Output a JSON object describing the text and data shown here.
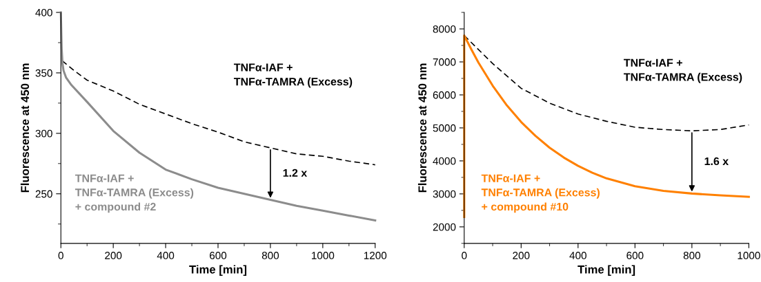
{
  "chart_data": [
    {
      "type": "line",
      "xlabel": "Time [min]",
      "ylabel": "Fluorescence at 450 nm",
      "xlim": [
        0,
        1200
      ],
      "xticks": [
        0,
        200,
        400,
        600,
        800,
        1000,
        1200
      ],
      "ylim": [
        209,
        400
      ],
      "yticks": [
        250,
        300,
        350,
        400
      ],
      "grid": false,
      "legend": false,
      "series": [
        {
          "name": "TNFα-IAF +\nTNFα-TAMRA (Excess)",
          "color": "#000000",
          "line_style": "dashed",
          "x": [
            5,
            50,
            100,
            200,
            300,
            400,
            500,
            600,
            700,
            800,
            900,
            1000,
            1100,
            1200
          ],
          "values": [
            360,
            352,
            344,
            335,
            324,
            316,
            308,
            301,
            293,
            288,
            283,
            281,
            277,
            274
          ]
        },
        {
          "name": "TNFα-IAF +\nTNFα-TAMRA (Excess)\n+ compound #2",
          "color": "#8c8c8c",
          "line_style": "solid",
          "x": [
            0,
            3,
            6,
            10,
            20,
            40,
            100,
            200,
            300,
            400,
            500,
            600,
            700,
            800,
            900,
            1000,
            1100,
            1200
          ],
          "values": [
            400,
            370,
            358,
            352,
            346,
            340,
            326,
            302,
            284,
            270,
            262,
            255,
            250,
            245,
            240,
            236,
            232,
            228
          ]
        }
      ],
      "annotations": [
        {
          "text": "1.2 x",
          "x": 800,
          "y": 245
        }
      ]
    },
    {
      "type": "line",
      "xlabel": "Time [min]",
      "ylabel": "Fluorescence at 450 nm",
      "xlim": [
        0,
        1000
      ],
      "xticks": [
        0,
        200,
        400,
        600,
        800,
        1000
      ],
      "ylim": [
        1500,
        8500
      ],
      "yticks": [
        2000,
        3000,
        4000,
        5000,
        6000,
        7000,
        8000
      ],
      "grid": false,
      "legend": false,
      "series": [
        {
          "name": "TNFα-IAF +\nTNFα-TAMRA (Excess)",
          "color": "#000000",
          "line_style": "dashed",
          "x": [
            0,
            100,
            200,
            300,
            400,
            500,
            600,
            700,
            800,
            900,
            1000
          ],
          "values": [
            7800,
            6950,
            6200,
            5750,
            5420,
            5200,
            5020,
            4950,
            4910,
            4950,
            5090
          ]
        },
        {
          "name": "TNFα-IAF +\nTNFα-TAMRA (Excess)\n+ compound #10",
          "color": "#ff8000",
          "line_style": "solid",
          "x": [
            0,
            0,
            25,
            50,
            100,
            150,
            200,
            250,
            300,
            350,
            400,
            450,
            500,
            600,
            700,
            800,
            900,
            1000
          ],
          "values": [
            2300,
            7800,
            7380,
            6980,
            6280,
            5680,
            5180,
            4760,
            4400,
            4100,
            3850,
            3640,
            3470,
            3230,
            3090,
            3010,
            2955,
            2910
          ]
        }
      ],
      "annotations": [
        {
          "text": "1.6 x",
          "x": 800,
          "y": 3010
        }
      ]
    }
  ]
}
